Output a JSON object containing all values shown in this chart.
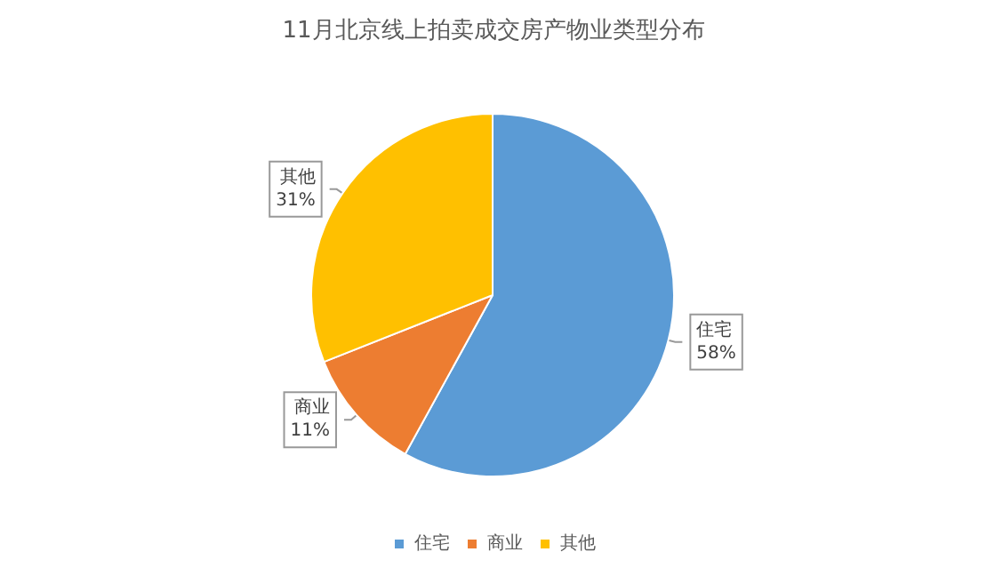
{
  "chart_data": {
    "type": "pie",
    "title": "11月北京线上拍卖成交房产物业类型分布",
    "categories": [
      "住宅",
      "商业",
      "其他"
    ],
    "values": [
      58,
      11,
      31
    ],
    "colors": [
      "#5b9bd5",
      "#ed7d31",
      "#ffc000"
    ],
    "value_labels": [
      "58%",
      "11%",
      "31%"
    ],
    "legend": "bottom"
  }
}
